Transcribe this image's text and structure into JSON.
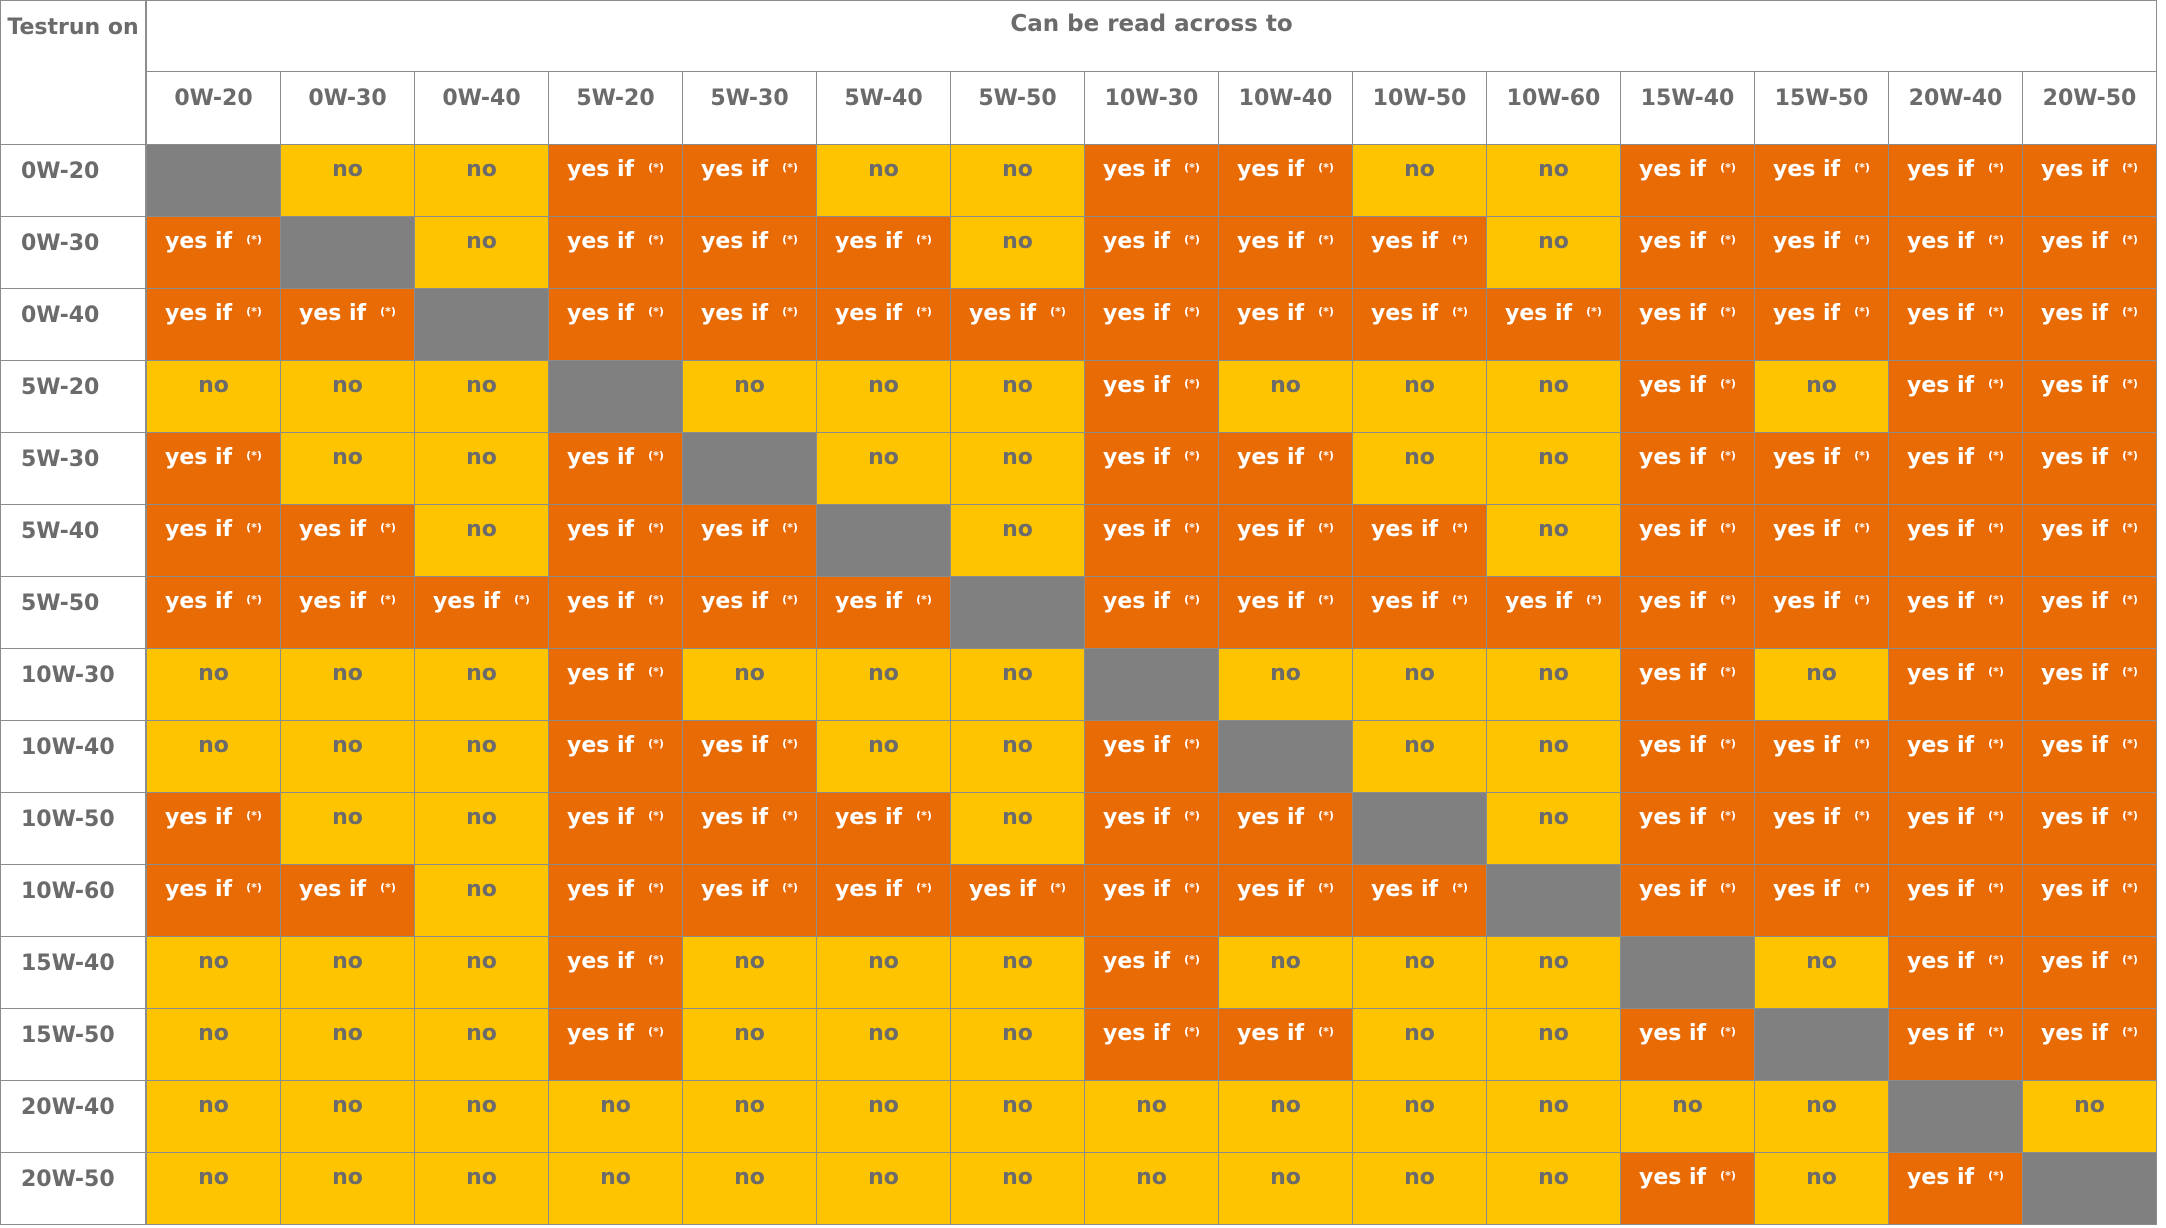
{
  "header": {
    "corner_line1": "Test",
    "corner_line2": "run on",
    "columns_title": "Can be read across to"
  },
  "labels": {
    "no": "no",
    "yes": "yes if",
    "note": "(*)"
  },
  "colors": {
    "no": "#fec400",
    "yes": "#e96b05",
    "na": "#808080",
    "text": "#6b6b6b"
  },
  "columns": [
    "0W-20",
    "0W-30",
    "0W-40",
    "5W-20",
    "5W-30",
    "5W-40",
    "5W-50",
    "10W-30",
    "10W-40",
    "10W-50",
    "10W-60",
    "15W-40",
    "15W-50",
    "20W-40",
    "20W-50"
  ],
  "rows": [
    {
      "label": "0W-20",
      "cells": [
        "-",
        "no",
        "no",
        "yes",
        "yes",
        "no",
        "no",
        "yes",
        "yes",
        "no",
        "no",
        "yes",
        "yes",
        "yes",
        "yes"
      ]
    },
    {
      "label": "0W-30",
      "cells": [
        "yes",
        "-",
        "no",
        "yes",
        "yes",
        "yes",
        "no",
        "yes",
        "yes",
        "yes",
        "no",
        "yes",
        "yes",
        "yes",
        "yes"
      ]
    },
    {
      "label": "0W-40",
      "cells": [
        "yes",
        "yes",
        "-",
        "yes",
        "yes",
        "yes",
        "yes",
        "yes",
        "yes",
        "yes",
        "yes",
        "yes",
        "yes",
        "yes",
        "yes"
      ]
    },
    {
      "label": "5W-20",
      "cells": [
        "no",
        "no",
        "no",
        "-",
        "no",
        "no",
        "no",
        "yes",
        "no",
        "no",
        "no",
        "yes",
        "no",
        "yes",
        "yes"
      ]
    },
    {
      "label": "5W-30",
      "cells": [
        "yes",
        "no",
        "no",
        "yes",
        "-",
        "no",
        "no",
        "yes",
        "yes",
        "no",
        "no",
        "yes",
        "yes",
        "yes",
        "yes"
      ]
    },
    {
      "label": "5W-40",
      "cells": [
        "yes",
        "yes",
        "no",
        "yes",
        "yes",
        "-",
        "no",
        "yes",
        "yes",
        "yes",
        "no",
        "yes",
        "yes",
        "yes",
        "yes"
      ]
    },
    {
      "label": "5W-50",
      "cells": [
        "yes",
        "yes",
        "yes",
        "yes",
        "yes",
        "yes",
        "-",
        "yes",
        "yes",
        "yes",
        "yes",
        "yes",
        "yes",
        "yes",
        "yes"
      ]
    },
    {
      "label": "10W-30",
      "cells": [
        "no",
        "no",
        "no",
        "yes",
        "no",
        "no",
        "no",
        "-",
        "no",
        "no",
        "no",
        "yes",
        "no",
        "yes",
        "yes"
      ]
    },
    {
      "label": "10W-40",
      "cells": [
        "no",
        "no",
        "no",
        "yes",
        "yes",
        "no",
        "no",
        "yes",
        "-",
        "no",
        "no",
        "yes",
        "yes",
        "yes",
        "yes"
      ]
    },
    {
      "label": "10W-50",
      "cells": [
        "yes",
        "no",
        "no",
        "yes",
        "yes",
        "yes",
        "no",
        "yes",
        "yes",
        "-",
        "no",
        "yes",
        "yes",
        "yes",
        "yes"
      ]
    },
    {
      "label": "10W-60",
      "cells": [
        "yes",
        "yes",
        "no",
        "yes",
        "yes",
        "yes",
        "yes",
        "yes",
        "yes",
        "yes",
        "-",
        "yes",
        "yes",
        "yes",
        "yes"
      ]
    },
    {
      "label": "15W-40",
      "cells": [
        "no",
        "no",
        "no",
        "yes",
        "no",
        "no",
        "no",
        "yes",
        "no",
        "no",
        "no",
        "-",
        "no",
        "yes",
        "yes"
      ]
    },
    {
      "label": "15W-50",
      "cells": [
        "no",
        "no",
        "no",
        "yes",
        "no",
        "no",
        "no",
        "yes",
        "yes",
        "no",
        "no",
        "yes",
        "-",
        "yes",
        "yes"
      ]
    },
    {
      "label": "20W-40",
      "cells": [
        "no",
        "no",
        "no",
        "no",
        "no",
        "no",
        "no",
        "no",
        "no",
        "no",
        "no",
        "no",
        "no",
        "-",
        "no"
      ]
    },
    {
      "label": "20W-50",
      "cells": [
        "no",
        "no",
        "no",
        "no",
        "no",
        "no",
        "no",
        "no",
        "no",
        "no",
        "no",
        "yes",
        "no",
        "yes",
        "-"
      ]
    }
  ]
}
